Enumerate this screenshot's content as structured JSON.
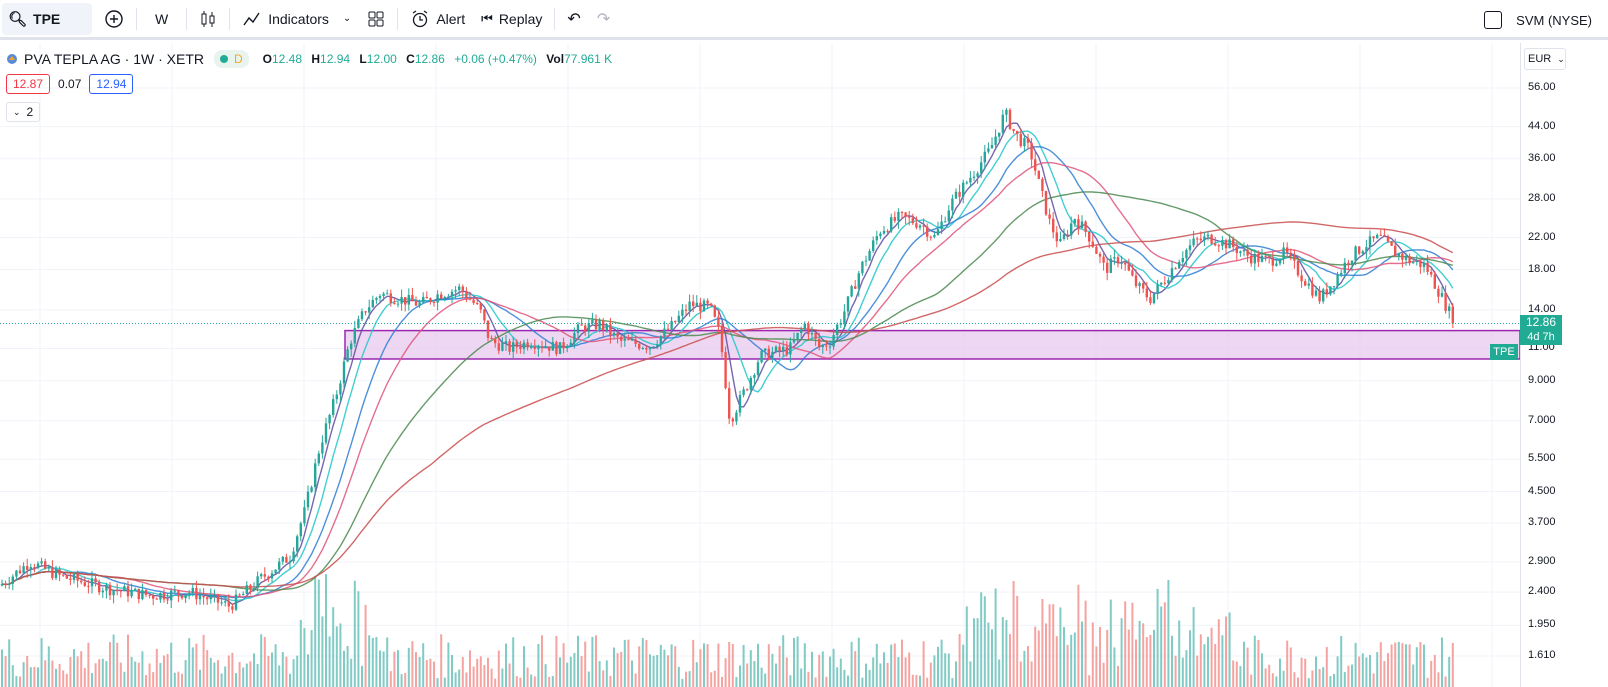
{
  "toolbar": {
    "symbol": "TPE",
    "interval": "W",
    "indicators_label": "Indicators",
    "alert_label": "Alert",
    "replay_label": "Replay",
    "compare_label": "SVM (NYSE)"
  },
  "legend": {
    "title": "PVA TEPLA AG · 1W · XETR",
    "badge": "D",
    "open_key": "O",
    "open": "12.48",
    "high_key": "H",
    "high": "12.94",
    "low_key": "L",
    "low": "12.00",
    "close_key": "C",
    "close": "12.86",
    "change": "+0.06 (+0.47%)",
    "vol_key": "Vol",
    "vol": "77.961 K",
    "bid": "12.87",
    "spread": "0.07",
    "ask": "12.94",
    "collapse_count": "2"
  },
  "pricescale": {
    "currency": "EUR",
    "ticks": [
      "56.00",
      "44.00",
      "36.00",
      "28.00",
      "22.00",
      "18.00",
      "14.00",
      "11.00",
      "9.000",
      "7.000",
      "5.500",
      "4.500",
      "3.700",
      "2.900",
      "2.400",
      "1.950",
      "1.610"
    ],
    "last_price": "12.86",
    "countdown": "4d 7h",
    "symbol_tag": "TPE"
  },
  "colors": {
    "up": "#26a69a",
    "down": "#ef5350",
    "vol_up": "#80cbc4",
    "vol_down": "#f5a3a1",
    "box_fill": "#e7c9ee",
    "box_border": "#9c27b0"
  },
  "chart_data": {
    "type": "candlestick",
    "scale": "log",
    "ylim": [
      1.5,
      65
    ],
    "zone": [
      10.3,
      12.3
    ],
    "keyframes": [
      [
        0,
        2.5
      ],
      [
        30,
        2.9
      ],
      [
        60,
        2.65
      ],
      [
        110,
        2.45
      ],
      [
        150,
        2.35
      ],
      [
        190,
        2.4
      ],
      [
        230,
        2.2
      ],
      [
        260,
        2.6
      ],
      [
        290,
        3.0
      ],
      [
        305,
        4.0
      ],
      [
        320,
        6.0
      ],
      [
        335,
        8.0
      ],
      [
        350,
        11.5
      ],
      [
        365,
        14.0
      ],
      [
        380,
        15.5
      ],
      [
        400,
        15.0
      ],
      [
        420,
        14.5
      ],
      [
        440,
        15.5
      ],
      [
        460,
        16.0
      ],
      [
        480,
        14.0
      ],
      [
        490,
        11.5
      ],
      [
        510,
        11.0
      ],
      [
        530,
        11.5
      ],
      [
        560,
        11.0
      ],
      [
        580,
        12.5
      ],
      [
        600,
        12.8
      ],
      [
        620,
        11.5
      ],
      [
        650,
        11.2
      ],
      [
        670,
        12.5
      ],
      [
        690,
        14.5
      ],
      [
        710,
        14.2
      ],
      [
        720,
        12.0
      ],
      [
        730,
        7.0
      ],
      [
        745,
        8.5
      ],
      [
        760,
        10.5
      ],
      [
        790,
        11.0
      ],
      [
        805,
        12.8
      ],
      [
        820,
        11.0
      ],
      [
        830,
        11.5
      ],
      [
        845,
        14.0
      ],
      [
        860,
        18.0
      ],
      [
        880,
        23.0
      ],
      [
        900,
        25.0
      ],
      [
        920,
        24.0
      ],
      [
        935,
        22.0
      ],
      [
        950,
        27.0
      ],
      [
        970,
        32.0
      ],
      [
        990,
        38.0
      ],
      [
        1005,
        48.0
      ],
      [
        1015,
        42.0
      ],
      [
        1030,
        38.0
      ],
      [
        1040,
        30.0
      ],
      [
        1050,
        24.0
      ],
      [
        1060,
        21.0
      ],
      [
        1075,
        25.0
      ],
      [
        1090,
        22.0
      ],
      [
        1105,
        18.0
      ],
      [
        1120,
        19.5
      ],
      [
        1135,
        16.5
      ],
      [
        1150,
        15.0
      ],
      [
        1165,
        17.0
      ],
      [
        1180,
        19.5
      ],
      [
        1195,
        21.5
      ],
      [
        1210,
        22.0
      ],
      [
        1230,
        21.0
      ],
      [
        1250,
        19.5
      ],
      [
        1270,
        19.0
      ],
      [
        1285,
        20.0
      ],
      [
        1300,
        17.5
      ],
      [
        1320,
        15.0
      ],
      [
        1335,
        17.0
      ],
      [
        1350,
        19.5
      ],
      [
        1365,
        21.0
      ],
      [
        1380,
        22.0
      ],
      [
        1395,
        20.0
      ],
      [
        1410,
        19.0
      ],
      [
        1425,
        18.5
      ],
      [
        1440,
        15.5
      ],
      [
        1455,
        12.86
      ]
    ],
    "ma_periods": [
      5,
      10,
      20,
      30,
      60,
      120
    ]
  }
}
